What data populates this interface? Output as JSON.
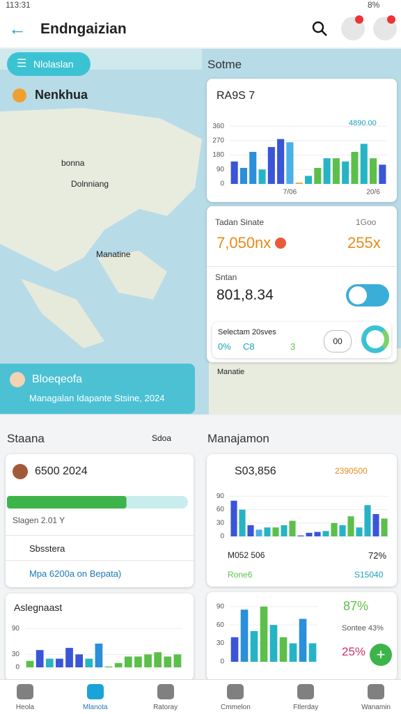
{
  "status": {
    "time": "113:31",
    "battery": "8%"
  },
  "header": {
    "title": "Endngaizian"
  },
  "map": {
    "button": "Nlolaslan",
    "location": "Nenkhua",
    "labels": [
      "bonna",
      "Dolnniang",
      "Manatine",
      "Manatie"
    ],
    "card_title": "Bloeqeofa",
    "card_subtitle": "Managalan Idapante Stsine, 2024"
  },
  "right_section": {
    "title": "Sotme"
  },
  "chart1": {
    "title": "RA9S 7",
    "legend": "4890.00",
    "ylim": [
      0,
      400
    ],
    "yticks": [
      0,
      90,
      180,
      270,
      360
    ],
    "values": [
      140,
      100,
      200,
      90,
      230,
      280,
      260,
      8,
      50,
      100,
      160,
      160,
      140,
      200,
      250,
      160,
      120
    ],
    "colors": [
      "#3a55d8",
      "#2b8fd9",
      "#2b8fd9",
      "#26b4c4",
      "#3a55d8",
      "#3a55d8",
      "#4ab0e8",
      "#f0a030",
      "#26b4c4",
      "#5cbf4a",
      "#26b4c4",
      "#5cbf4a",
      "#26b4c4",
      "#5cbf4a",
      "#26b4c4",
      "#5cbf4a",
      "#3a55d8"
    ],
    "categories": [
      null,
      null,
      null,
      null,
      null,
      null,
      "7/06",
      null,
      null,
      null,
      null,
      null,
      null,
      null,
      null,
      "20/6",
      null
    ]
  },
  "stats": {
    "title": "Tadan Sinate",
    "link": "1Goo",
    "main": "7,050nx",
    "side": "255x",
    "label2": "Sntan",
    "value2": "801,8.34",
    "sub_title": "Selectam 20sves",
    "sub_values": [
      "0%",
      "C8",
      "3"
    ],
    "icon": "00"
  },
  "section_left": {
    "title": "Staana",
    "link": "Sdoa"
  },
  "section_right": {
    "title": "Manajamon"
  },
  "profile": {
    "title": "6500 2024",
    "progress": 66,
    "caption": "Slagen 2.01 Y",
    "items": [
      "Sbsstera",
      "Mpa 6200a on Bepata)"
    ]
  },
  "chart2": {
    "title": "Aslegnaast",
    "ylim": [
      0,
      100
    ],
    "yticks": [
      0,
      30,
      90
    ],
    "values": [
      15,
      40,
      20,
      20,
      45,
      30,
      20,
      55,
      2,
      10,
      25,
      25,
      30,
      35,
      25,
      30
    ],
    "colors": [
      "#5cbf4a",
      "#3a55d8",
      "#26b4c4",
      "#3a55d8",
      "#3a55d8",
      "#3a55d8",
      "#26b4c4",
      "#2b8fd9",
      "#5cbf4a",
      "#5cbf4a",
      "#5cbf4a",
      "#5cbf4a",
      "#5cbf4a",
      "#5cbf4a",
      "#5cbf4a",
      "#5cbf4a"
    ]
  },
  "chart3": {
    "title": "S03,856",
    "legend": "2390500",
    "ylim": [
      0,
      100
    ],
    "yticks": [
      0,
      30,
      60,
      90
    ],
    "values": [
      80,
      60,
      25,
      15,
      20,
      20,
      25,
      35,
      2,
      8,
      10,
      12,
      30,
      25,
      45,
      20,
      70,
      50,
      40
    ],
    "colors": [
      "#3a55d8",
      "#26b4c4",
      "#3a55d8",
      "#4ab0e8",
      "#26b4c4",
      "#5cbf4a",
      "#26b4c4",
      "#5cbf4a",
      "#3a55d8",
      "#3a55d8",
      "#3a55d8",
      "#26b4c4",
      "#5cbf4a",
      "#26b4c4",
      "#5cbf4a",
      "#26b4c4",
      "#26b4c4",
      "#3a55d8",
      "#5cbf4a"
    ],
    "items": [
      [
        "M052 506",
        "72%"
      ],
      [
        "Rone6",
        "S15040"
      ]
    ]
  },
  "chart4": {
    "ylim": [
      0,
      100
    ],
    "yticks": [
      0,
      30,
      60,
      90
    ],
    "values": [
      40,
      85,
      50,
      90,
      60,
      40,
      30,
      70,
      30
    ],
    "colors": [
      "#3a55d8",
      "#2b8fd9",
      "#26b4c4",
      "#5cbf4a",
      "#26b4c4",
      "#5cbf4a",
      "#26b4c4",
      "#2b8fd9",
      "#26b4c4"
    ],
    "stats": [
      "87%",
      "Sontee 43%",
      "25%"
    ]
  },
  "nav": [
    "Heola",
    "Mlanota",
    "Ratoray",
    "Cmmelon",
    "Ftlerday",
    "Wanamin"
  ]
}
